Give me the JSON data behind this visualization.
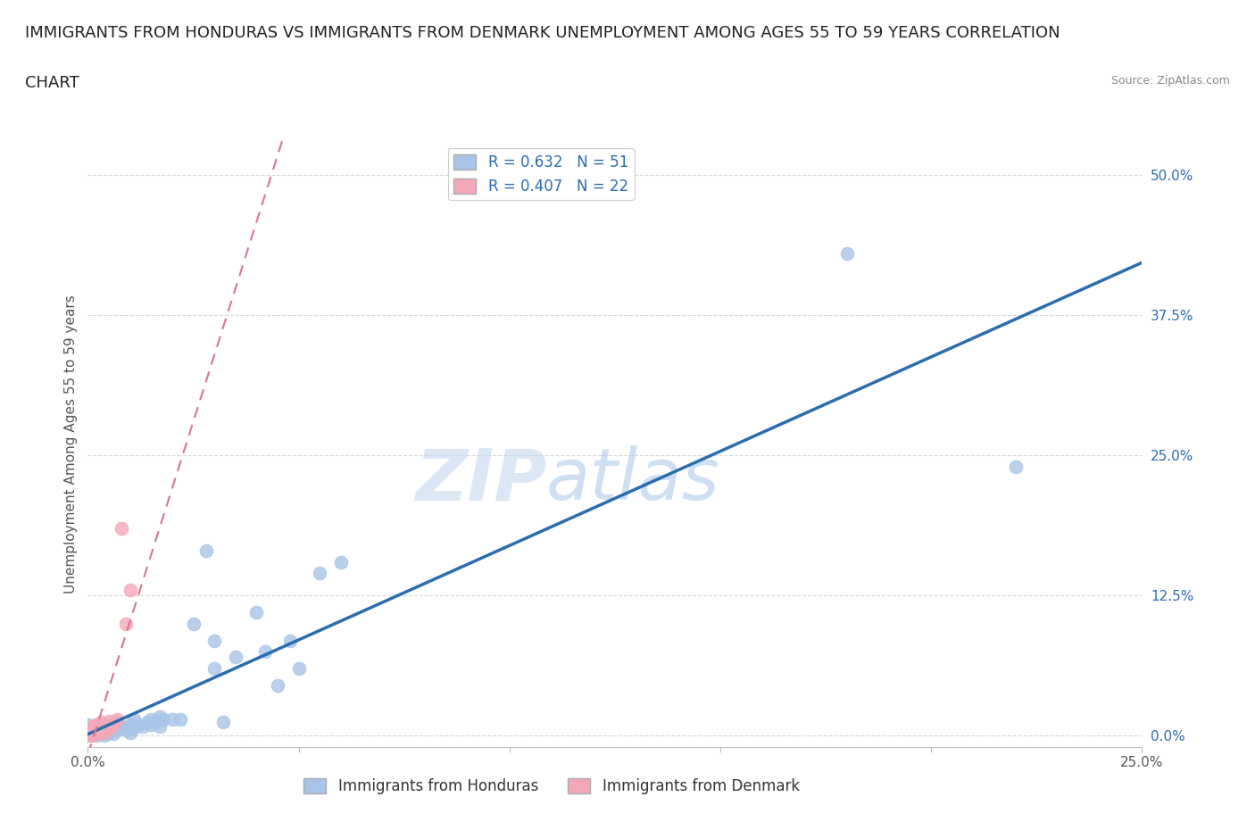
{
  "title_line1": "IMMIGRANTS FROM HONDURAS VS IMMIGRANTS FROM DENMARK UNEMPLOYMENT AMONG AGES 55 TO 59 YEARS CORRELATION",
  "title_line2": "CHART",
  "source": "Source: ZipAtlas.com",
  "xlabel": "",
  "ylabel": "Unemployment Among Ages 55 to 59 years",
  "xlim": [
    0.0,
    0.25
  ],
  "ylim": [
    -0.01,
    0.53
  ],
  "yticks": [
    0.0,
    0.125,
    0.25,
    0.375,
    0.5
  ],
  "ytick_labels": [
    "0.0%",
    "12.5%",
    "25.0%",
    "37.5%",
    "50.0%"
  ],
  "xticks": [
    0.0,
    0.05,
    0.1,
    0.15,
    0.2,
    0.25
  ],
  "xtick_labels": [
    "0.0%",
    "",
    "",
    "",
    "",
    "25.0%"
  ],
  "honduras_R": 0.632,
  "honduras_N": 51,
  "denmark_R": 0.407,
  "denmark_N": 22,
  "honduras_color": "#a8c4e8",
  "denmark_color": "#f4a7b9",
  "trend_honduras_color": "#2b6cb0",
  "trend_denmark_color": "#d9748a",
  "background_color": "#ffffff",
  "grid_color": "#cccccc",
  "honduras_x": [
    0.0,
    0.0,
    0.0,
    0.001,
    0.001,
    0.001,
    0.002,
    0.002,
    0.002,
    0.003,
    0.003,
    0.004,
    0.004,
    0.005,
    0.005,
    0.006,
    0.006,
    0.007,
    0.007,
    0.008,
    0.009,
    0.01,
    0.01,
    0.011,
    0.011,
    0.012,
    0.013,
    0.014,
    0.015,
    0.015,
    0.016,
    0.017,
    0.017,
    0.018,
    0.02,
    0.022,
    0.025,
    0.028,
    0.03,
    0.03,
    0.032,
    0.035,
    0.04,
    0.042,
    0.045,
    0.048,
    0.05,
    0.055,
    0.06,
    0.18,
    0.22
  ],
  "honduras_y": [
    0.0,
    0.01,
    0.005,
    0.0,
    0.003,
    0.008,
    0.0,
    0.005,
    0.01,
    0.002,
    0.006,
    0.0,
    0.008,
    0.003,
    0.01,
    0.002,
    0.007,
    0.005,
    0.012,
    0.008,
    0.005,
    0.003,
    0.01,
    0.007,
    0.015,
    0.01,
    0.008,
    0.012,
    0.01,
    0.015,
    0.013,
    0.008,
    0.017,
    0.015,
    0.015,
    0.015,
    0.1,
    0.165,
    0.085,
    0.06,
    0.012,
    0.07,
    0.11,
    0.075,
    0.045,
    0.085,
    0.06,
    0.145,
    0.155,
    0.43,
    0.24
  ],
  "denmark_x": [
    0.0,
    0.0,
    0.0,
    0.0,
    0.001,
    0.001,
    0.001,
    0.002,
    0.002,
    0.002,
    0.003,
    0.003,
    0.003,
    0.004,
    0.004,
    0.005,
    0.005,
    0.006,
    0.007,
    0.008,
    0.009,
    0.01
  ],
  "denmark_y": [
    0.0,
    0.0,
    0.003,
    0.005,
    0.0,
    0.003,
    0.008,
    0.002,
    0.005,
    0.01,
    0.005,
    0.008,
    0.012,
    0.003,
    0.01,
    0.007,
    0.013,
    0.01,
    0.015,
    0.185,
    0.1,
    0.13
  ],
  "watermark_zip": "ZIP",
  "watermark_atlas": "atlas",
  "title_fontsize": 13,
  "axis_label_fontsize": 11,
  "tick_fontsize": 11,
  "legend_fontsize": 12
}
